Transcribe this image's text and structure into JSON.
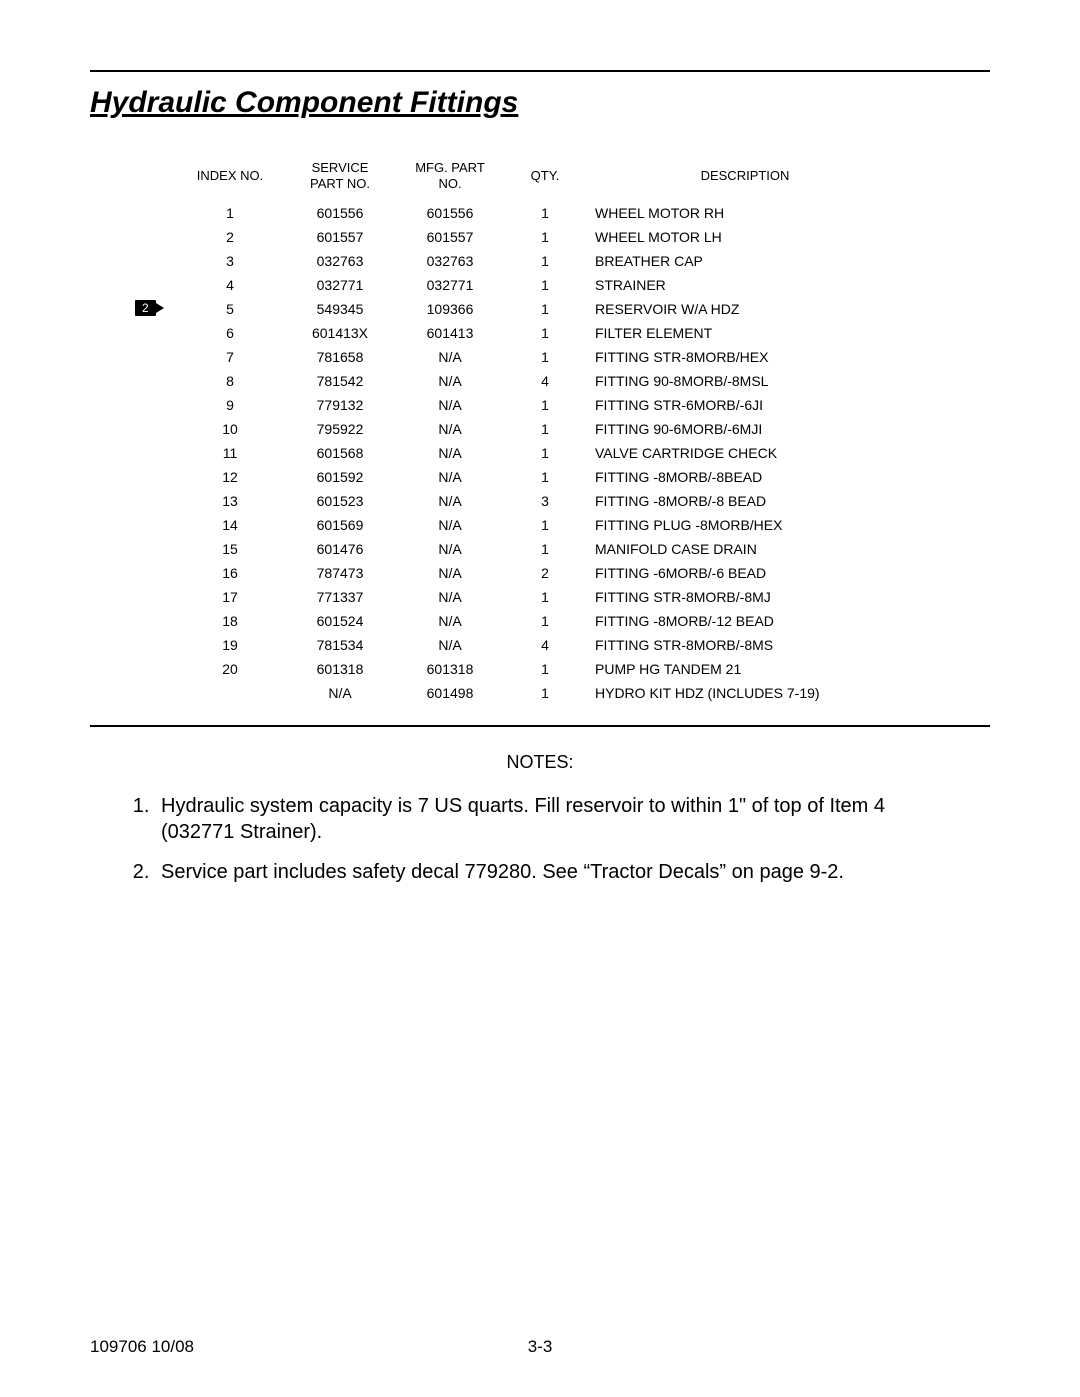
{
  "title": "Hydraulic Component Fittings",
  "table": {
    "headers": {
      "index": "INDEX NO.",
      "service": "SERVICE\nPART NO.",
      "mfg": "MFG. PART\nNO.",
      "qty": "QTY.",
      "desc": "DESCRIPTION"
    },
    "rows": [
      {
        "index": "1",
        "service": "601556",
        "mfg": "601556",
        "qty": "1",
        "desc": "WHEEL MOTOR RH"
      },
      {
        "index": "2",
        "service": "601557",
        "mfg": "601557",
        "qty": "1",
        "desc": "WHEEL MOTOR LH"
      },
      {
        "index": "3",
        "service": "032763",
        "mfg": "032763",
        "qty": "1",
        "desc": "BREATHER CAP"
      },
      {
        "index": "4",
        "service": "032771",
        "mfg": "032771",
        "qty": "1",
        "desc": "STRAINER"
      },
      {
        "index": "5",
        "service": "549345",
        "mfg": "109366",
        "qty": "1",
        "desc": "RESERVOIR W/A HDZ",
        "note_ref": "2"
      },
      {
        "index": "6",
        "service": "601413X",
        "mfg": "601413",
        "qty": "1",
        "desc": "FILTER ELEMENT"
      },
      {
        "index": "7",
        "service": "781658",
        "mfg": "N/A",
        "qty": "1",
        "desc": "FITTING STR-8MORB/HEX"
      },
      {
        "index": "8",
        "service": "781542",
        "mfg": "N/A",
        "qty": "4",
        "desc": "FITTING 90-8MORB/-8MSL"
      },
      {
        "index": "9",
        "service": "779132",
        "mfg": "N/A",
        "qty": "1",
        "desc": "FITTING STR-6MORB/-6JI"
      },
      {
        "index": "10",
        "service": "795922",
        "mfg": "N/A",
        "qty": "1",
        "desc": "FITTING 90-6MORB/-6MJI"
      },
      {
        "index": "11",
        "service": "601568",
        "mfg": "N/A",
        "qty": "1",
        "desc": "VALVE CARTRIDGE CHECK"
      },
      {
        "index": "12",
        "service": "601592",
        "mfg": "N/A",
        "qty": "1",
        "desc": "FITTING -8MORB/-8BEAD"
      },
      {
        "index": "13",
        "service": "601523",
        "mfg": "N/A",
        "qty": "3",
        "desc": "FITTING -8MORB/-8 BEAD"
      },
      {
        "index": "14",
        "service": "601569",
        "mfg": "N/A",
        "qty": "1",
        "desc": "FITTING PLUG -8MORB/HEX"
      },
      {
        "index": "15",
        "service": "601476",
        "mfg": "N/A",
        "qty": "1",
        "desc": "MANIFOLD CASE DRAIN"
      },
      {
        "index": "16",
        "service": "787473",
        "mfg": "N/A",
        "qty": "2",
        "desc": "FITTING -6MORB/-6 BEAD"
      },
      {
        "index": "17",
        "service": "771337",
        "mfg": "N/A",
        "qty": "1",
        "desc": "FITTING STR-8MORB/-8MJ"
      },
      {
        "index": "18",
        "service": "601524",
        "mfg": "N/A",
        "qty": "1",
        "desc": "FITTING -8MORB/-12 BEAD"
      },
      {
        "index": "19",
        "service": "781534",
        "mfg": "N/A",
        "qty": "4",
        "desc": "FITTING STR-8MORB/-8MS"
      },
      {
        "index": "20",
        "service": "601318",
        "mfg": "601318",
        "qty": "1",
        "desc": "PUMP HG TANDEM 21"
      },
      {
        "index": "",
        "service": "N/A",
        "mfg": "601498",
        "qty": "1",
        "desc": "HYDRO KIT HDZ (INCLUDES 7-19)"
      }
    ]
  },
  "notes_label": "NOTES:",
  "notes": [
    "Hydraulic system capacity is 7 US quarts. Fill reservoir to within 1\" of top of Item 4 (032771 Strainer).",
    "Service part includes safety decal 779280. See “Tractor Decals” on page 9-2."
  ],
  "footer": {
    "left": "109706 10/08",
    "center": "3-3"
  }
}
